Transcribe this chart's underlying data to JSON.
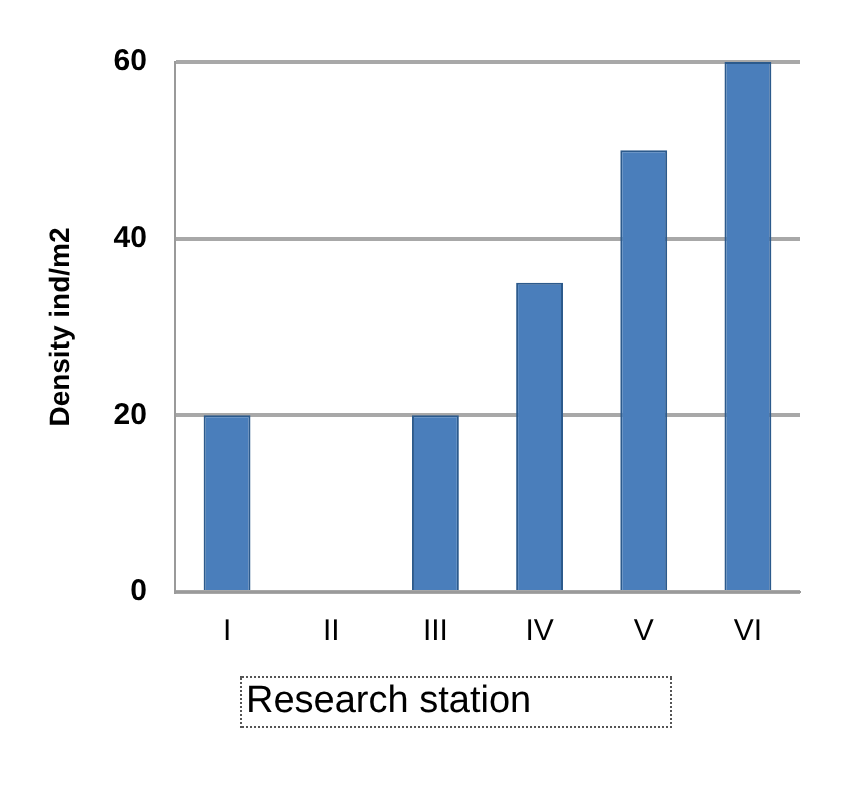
{
  "chart_data": {
    "type": "bar",
    "xlabel": "Research station",
    "ylabel": "Density ind/m2",
    "categories": [
      "I",
      "II",
      "III",
      "IV",
      "V",
      "VI"
    ],
    "values": [
      20,
      0,
      20,
      35,
      50,
      60
    ],
    "color": "#4a7ebb",
    "ylim": [
      0,
      60
    ],
    "yticks": [
      0,
      20,
      40,
      60
    ],
    "grid": "y"
  }
}
